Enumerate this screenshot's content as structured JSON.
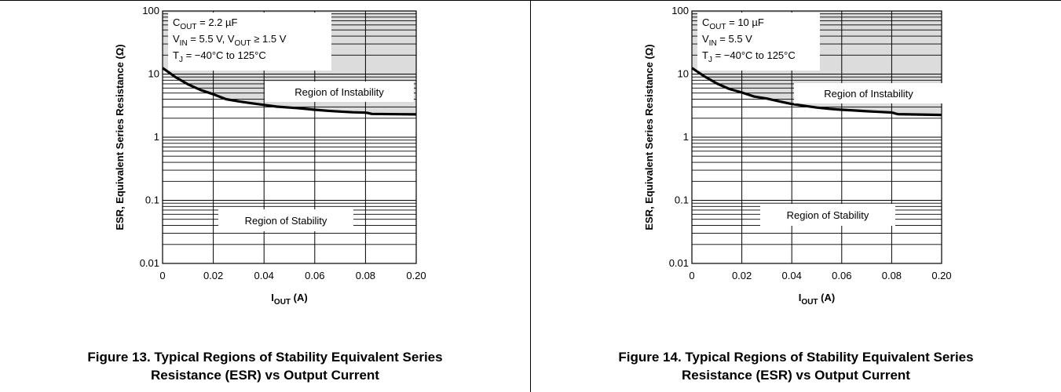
{
  "figures": [
    {
      "caption_line1": "Figure 13. Typical Regions of Stability Equivalent Series",
      "caption_line2": "Resistance (ESR) vs Output Current",
      "conditions": [
        {
          "main": "C",
          "sub": "OUT",
          "rest": " = 2.2 µF",
          "sub2": "",
          "rest2": ""
        },
        {
          "main": "V",
          "sub": "IN",
          "rest": " = 5.5 V, V",
          "sub2": "OUT",
          "rest2": " ≥ 1.5 V"
        },
        {
          "main": "T",
          "sub": "J",
          "rest": " = −40°C to 125°C",
          "sub2": "",
          "rest2": ""
        }
      ],
      "region_instability": "Region of Instability",
      "region_stability": "Region of Stability"
    },
    {
      "caption_line1": "Figure 14. Typical Regions of Stability Equivalent Series",
      "caption_line2": "Resistance (ESR) vs Output Current",
      "conditions": [
        {
          "main": "C",
          "sub": "OUT",
          "rest": " = 10 µF",
          "sub2": "",
          "rest2": ""
        },
        {
          "main": "V",
          "sub": "IN",
          "rest": " = 5.5 V",
          "sub2": "",
          "rest2": ""
        },
        {
          "main": "T",
          "sub": "J",
          "rest": " = −40°C to 125°C",
          "sub2": "",
          "rest2": ""
        }
      ],
      "region_instability": "Region of Instability",
      "region_stability": "Region of Stability"
    }
  ],
  "chart_data": [
    {
      "type": "line",
      "title": "",
      "xlabel": "I_OUT (A)",
      "xlabel_main": "I",
      "xlabel_sub": "OUT",
      "xlabel_rest": " (A)",
      "ylabel": "ESR, Equivalent Series Resistance (Ω)",
      "xlim": [
        0,
        0.2
      ],
      "ylim": [
        0.01,
        100
      ],
      "y_scale": "log",
      "x_ticks": [
        "0",
        "0.02",
        "0.04",
        "0.06",
        "0.08",
        "0.20"
      ],
      "y_ticks": [
        "0.01",
        "0.1",
        "1",
        "10",
        "100"
      ],
      "grid": true,
      "shade_above_curve": "#dcdcdc",
      "series": [
        {
          "x": [
            0,
            0.005,
            0.01,
            0.015,
            0.02,
            0.025,
            0.03,
            0.035,
            0.04,
            0.045,
            0.05,
            0.055,
            0.06,
            0.065,
            0.07,
            0.075,
            0.08,
            0.085,
            0.09,
            0.095,
            0.2
          ],
          "y": [
            12.5,
            9.0,
            6.9,
            5.6,
            4.8,
            4.0,
            3.7,
            3.45,
            3.25,
            3.05,
            2.95,
            2.85,
            2.72,
            2.62,
            2.55,
            2.48,
            2.45,
            2.42,
            2.38,
            2.34,
            2.3
          ]
        }
      ]
    },
    {
      "type": "line",
      "title": "",
      "xlabel": "I_OUT (A)",
      "xlabel_main": "I",
      "xlabel_sub": "OUT",
      "xlabel_rest": " (A)",
      "ylabel": "ESR, Equivalent Series Resistance (Ω)",
      "xlim": [
        0,
        0.2
      ],
      "ylim": [
        0.01,
        100
      ],
      "y_scale": "log",
      "x_ticks": [
        "0",
        "0.02",
        "0.04",
        "0.06",
        "0.08",
        "0.20"
      ],
      "y_ticks": [
        "0.01",
        "0.1",
        "1",
        "10",
        "100"
      ],
      "grid": true,
      "shade_above_curve": "#dcdcdc",
      "series": [
        {
          "x": [
            0,
            0.005,
            0.01,
            0.015,
            0.02,
            0.025,
            0.03,
            0.035,
            0.04,
            0.045,
            0.05,
            0.055,
            0.06,
            0.065,
            0.07,
            0.075,
            0.08,
            0.085,
            0.09,
            0.095,
            0.2
          ],
          "y": [
            12.5,
            9.2,
            7.1,
            5.8,
            5.1,
            4.4,
            4.1,
            3.7,
            3.35,
            3.15,
            2.95,
            2.82,
            2.72,
            2.65,
            2.58,
            2.52,
            2.46,
            2.41,
            2.36,
            2.32,
            2.25
          ]
        }
      ]
    }
  ]
}
